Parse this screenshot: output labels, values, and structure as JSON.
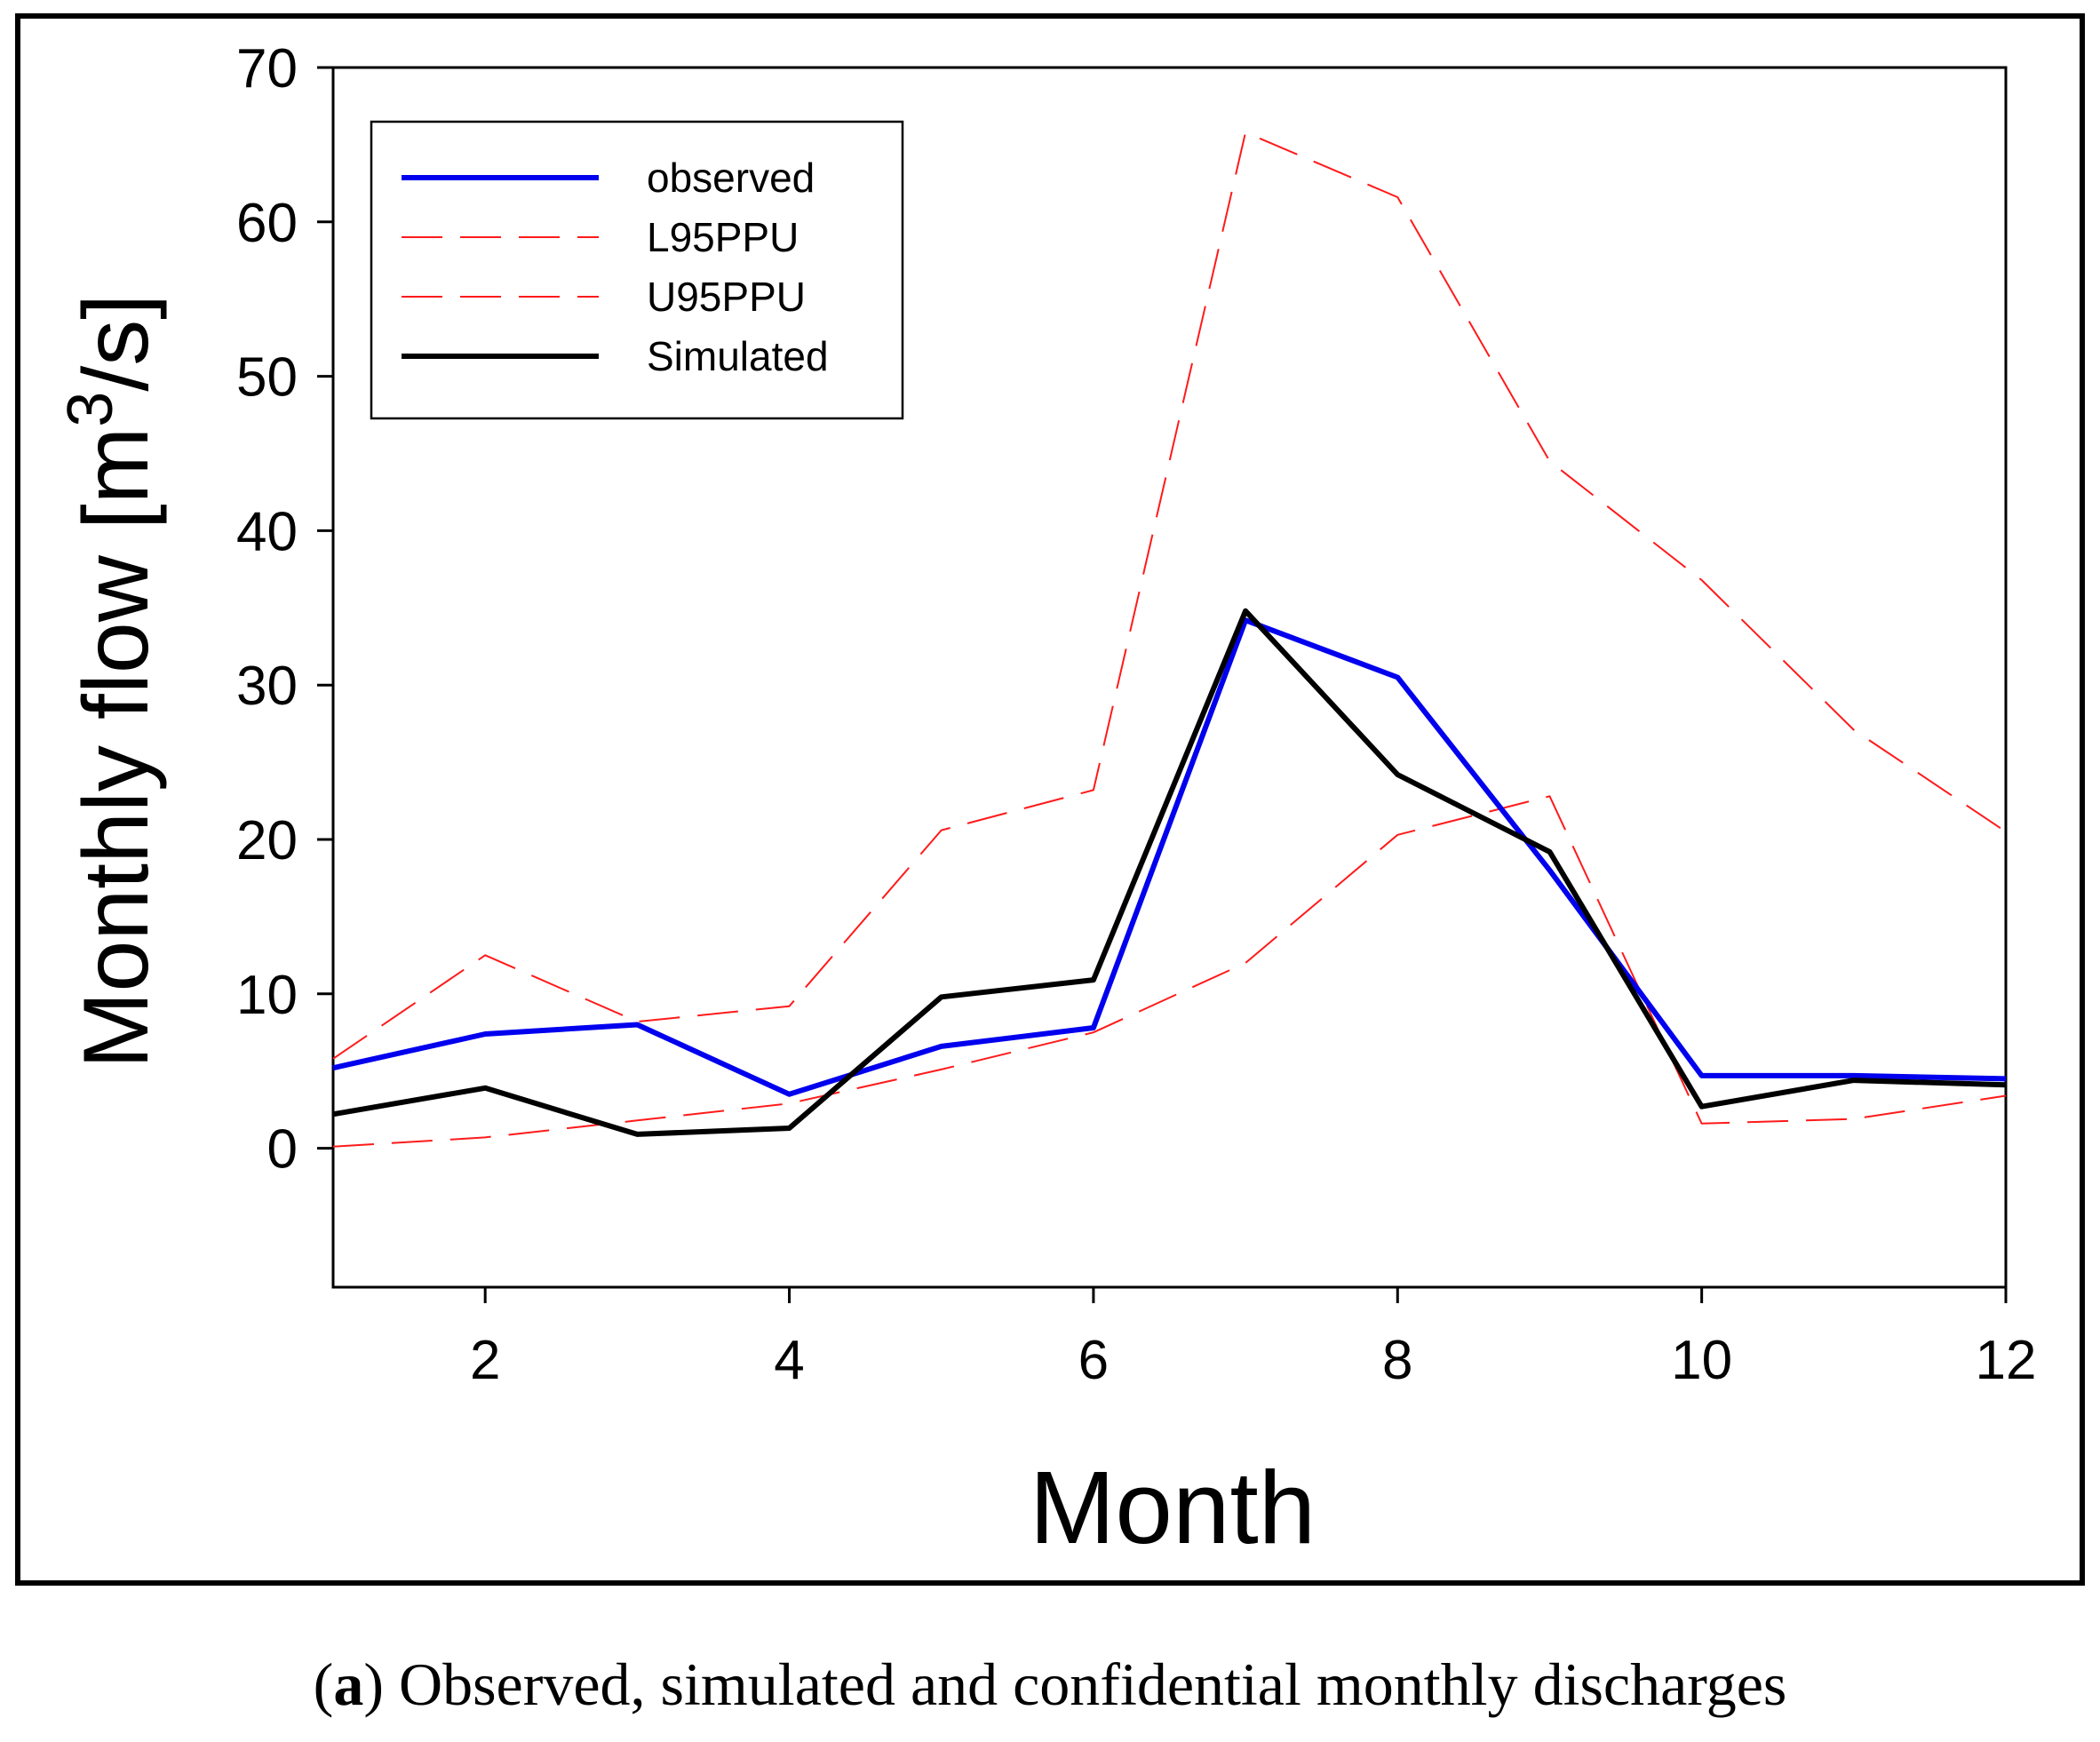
{
  "chart_data": {
    "type": "line",
    "xlabel": "Month",
    "ylabel_prefix": "Monthly flow [m",
    "ylabel_superscript": "3",
    "ylabel_suffix": "/s]",
    "xlim": [
      1,
      12
    ],
    "ylim": [
      -9,
      70
    ],
    "x_ticks": [
      2,
      4,
      6,
      8,
      10,
      12
    ],
    "y_ticks": [
      0,
      10,
      20,
      30,
      40,
      50,
      60,
      70
    ],
    "grid": false,
    "legend_position": "top-left",
    "x": [
      1,
      2,
      3,
      4,
      5,
      6,
      7,
      8,
      9,
      10,
      11,
      12
    ],
    "series": [
      {
        "name": "observed",
        "color": "#0000ee",
        "style": "solid",
        "values": [
          5.2,
          7.4,
          8.0,
          3.5,
          6.6,
          7.8,
          34.2,
          30.5,
          18.0,
          4.7,
          4.7,
          4.5
        ]
      },
      {
        "name": "L95PPU",
        "color": "#ff1a1a",
        "style": "dashed",
        "values": [
          0.1,
          0.7,
          1.8,
          2.9,
          5.1,
          7.5,
          12.0,
          20.3,
          22.8,
          1.6,
          1.9,
          3.4
        ]
      },
      {
        "name": "U95PPU",
        "color": "#ff1a1a",
        "style": "dashed",
        "values": [
          5.8,
          12.5,
          8.2,
          9.2,
          20.6,
          23.2,
          65.8,
          61.6,
          44.5,
          36.8,
          27.1,
          20.5
        ]
      },
      {
        "name": "Simulated",
        "color": "#000000",
        "style": "solid",
        "values": [
          2.2,
          3.9,
          0.9,
          1.3,
          9.8,
          10.9,
          34.8,
          24.2,
          19.2,
          2.7,
          4.4,
          4.1
        ]
      }
    ]
  },
  "caption": {
    "label": "a",
    "text": "Observed, simulated and confidential monthly discharges"
  }
}
